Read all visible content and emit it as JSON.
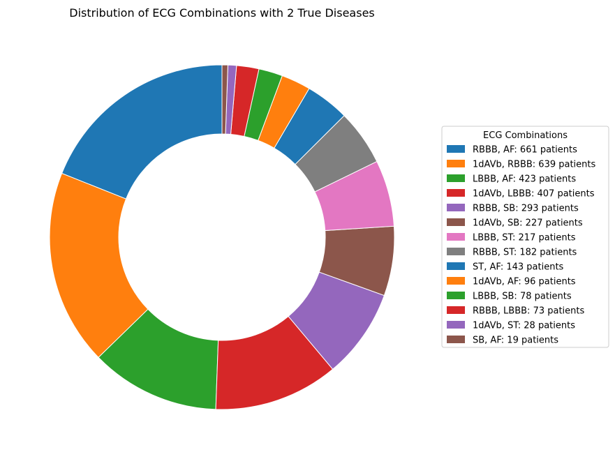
{
  "chart_data": {
    "type": "pie",
    "donut": true,
    "title": "Distribution of ECG Combinations with 2 True Diseases",
    "legend_title": "ECG Combinations",
    "legend_position": "right",
    "start_angle_deg": 90,
    "direction": "counterclockwise",
    "slices": [
      {
        "name": "RBBB, AF",
        "value": 661,
        "label": "RBBB, AF: 661 patients",
        "color": "#1f77b4"
      },
      {
        "name": "1dAVb, RBBB",
        "value": 639,
        "label": "1dAVb, RBBB: 639 patients",
        "color": "#ff7f0e"
      },
      {
        "name": "LBBB, AF",
        "value": 423,
        "label": "LBBB, AF: 423 patients",
        "color": "#2ca02c"
      },
      {
        "name": "1dAVb, LBBB",
        "value": 407,
        "label": "1dAVb, LBBB: 407 patients",
        "color": "#d62728"
      },
      {
        "name": "RBBB, SB",
        "value": 293,
        "label": "RBBB, SB: 293 patients",
        "color": "#9467bd"
      },
      {
        "name": "1dAVb, SB",
        "value": 227,
        "label": "1dAVb, SB: 227 patients",
        "color": "#8c564b"
      },
      {
        "name": "LBBB, ST",
        "value": 217,
        "label": "LBBB, ST: 217 patients",
        "color": "#e377c2"
      },
      {
        "name": "RBBB, ST",
        "value": 182,
        "label": "RBBB, ST: 182 patients",
        "color": "#7f7f7f"
      },
      {
        "name": "ST, AF",
        "value": 143,
        "label": "ST, AF: 143 patients",
        "color": "#1f77b4"
      },
      {
        "name": "1dAVb, AF",
        "value": 96,
        "label": "1dAVb, AF: 96 patients",
        "color": "#ff7f0e"
      },
      {
        "name": "LBBB, SB",
        "value": 78,
        "label": "LBBB, SB: 78 patients",
        "color": "#2ca02c"
      },
      {
        "name": "RBBB, LBBB",
        "value": 73,
        "label": "RBBB, LBBB: 73 patients",
        "color": "#d62728"
      },
      {
        "name": "1dAVb, ST",
        "value": 28,
        "label": "1dAVb, ST: 28 patients",
        "color": "#9467bd"
      },
      {
        "name": "SB, AF",
        "value": 19,
        "label": "SB, AF: 19 patients",
        "color": "#8c564b"
      }
    ]
  }
}
